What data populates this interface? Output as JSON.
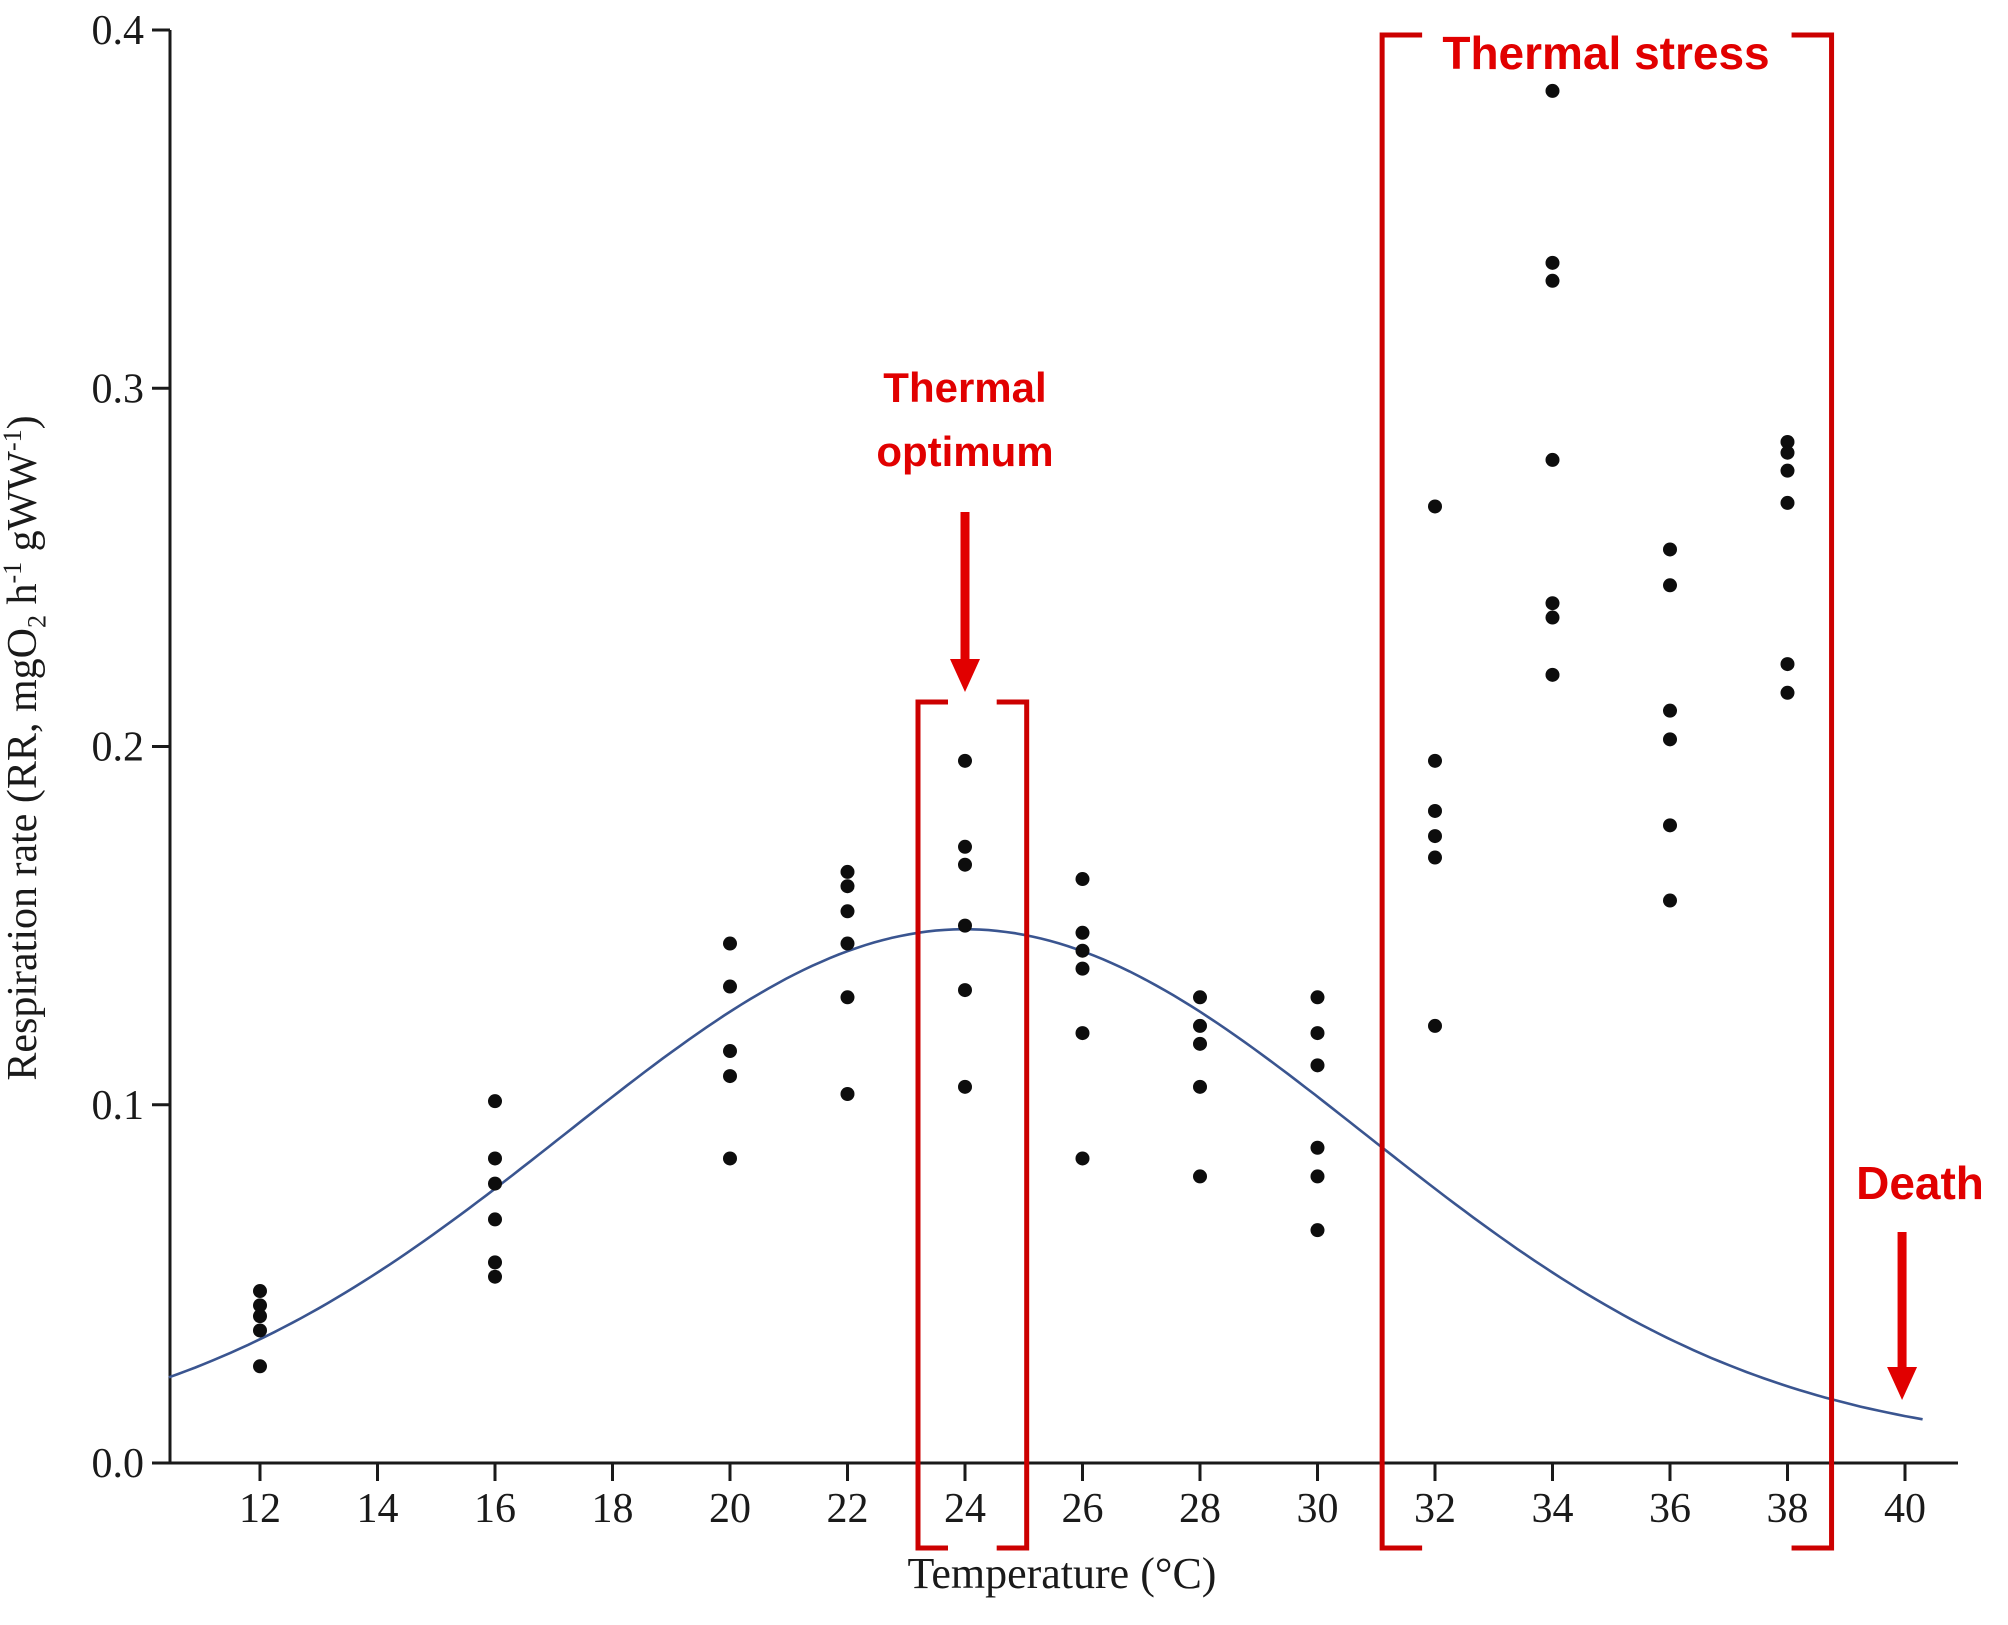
{
  "chart_data": {
    "type": "scatter",
    "title": "",
    "xlabel": "Temperature (°C)",
    "ylabel": "Respiration rate (RR, mgO2 h-1 gWW-1)",
    "ylabel_parts": [
      {
        "t": "Respiration rate (RR, mgO"
      },
      {
        "t": "2",
        "style": "sub"
      },
      {
        "t": " h"
      },
      {
        "t": "-1",
        "style": "sup"
      },
      {
        "t": " gWW"
      },
      {
        "t": "-1",
        "style": "sup"
      },
      {
        "t": ")"
      }
    ],
    "xlim": [
      10.5,
      40.8
    ],
    "ylim": [
      0.0,
      0.4
    ],
    "x_ticks": [
      12,
      14,
      16,
      18,
      20,
      22,
      24,
      26,
      28,
      30,
      32,
      34,
      36,
      38,
      40
    ],
    "y_ticks": [
      0.0,
      0.1,
      0.2,
      0.3,
      0.4
    ],
    "grid": false,
    "points": [
      {
        "x": 12,
        "y": [
          0.048,
          0.044,
          0.041,
          0.037,
          0.027
        ]
      },
      {
        "x": 16,
        "y": [
          0.101,
          0.085,
          0.078,
          0.068,
          0.056,
          0.052
        ]
      },
      {
        "x": 20,
        "y": [
          0.145,
          0.133,
          0.115,
          0.108,
          0.085
        ]
      },
      {
        "x": 22,
        "y": [
          0.165,
          0.161,
          0.154,
          0.145,
          0.13,
          0.103
        ]
      },
      {
        "x": 24,
        "y": [
          0.196,
          0.172,
          0.167,
          0.15,
          0.132,
          0.105
        ]
      },
      {
        "x": 26,
        "y": [
          0.163,
          0.148,
          0.143,
          0.138,
          0.12,
          0.085
        ]
      },
      {
        "x": 28,
        "y": [
          0.13,
          0.122,
          0.117,
          0.105,
          0.08
        ]
      },
      {
        "x": 30,
        "y": [
          0.13,
          0.12,
          0.111,
          0.088,
          0.08,
          0.065
        ]
      },
      {
        "x": 32,
        "y": [
          0.267,
          0.196,
          0.182,
          0.175,
          0.169,
          0.122
        ]
      },
      {
        "x": 34,
        "y": [
          0.383,
          0.335,
          0.33,
          0.28,
          0.24,
          0.236,
          0.22
        ]
      },
      {
        "x": 36,
        "y": [
          0.255,
          0.245,
          0.21,
          0.202,
          0.178,
          0.157
        ]
      },
      {
        "x": 38,
        "y": [
          0.285,
          0.282,
          0.277,
          0.268,
          0.223,
          0.215
        ]
      }
    ],
    "fit_curve": {
      "shape": "bell",
      "peak_x": 24,
      "peak_y": 0.149,
      "amplitude": 0.145,
      "sigma": 6.8,
      "baseline": 0.004
    },
    "annotations": [
      {
        "id": "thermal-optimum",
        "text_lines": [
          "Thermal",
          "optimum"
        ],
        "bracket_range": [
          23.2,
          25.05
        ],
        "arrow_x": 24
      },
      {
        "id": "thermal-stress",
        "text": "Thermal stress",
        "bracket_range": [
          31.1,
          38.75
        ]
      },
      {
        "id": "death",
        "text": "Death",
        "arrow_x": 39.95
      }
    ],
    "colors": {
      "point": "#0d0d0d",
      "curve": "#3a5590",
      "axis": "#1a1a1a",
      "annotation_red": "#e10000",
      "bracket_red": "#cc0000"
    }
  }
}
